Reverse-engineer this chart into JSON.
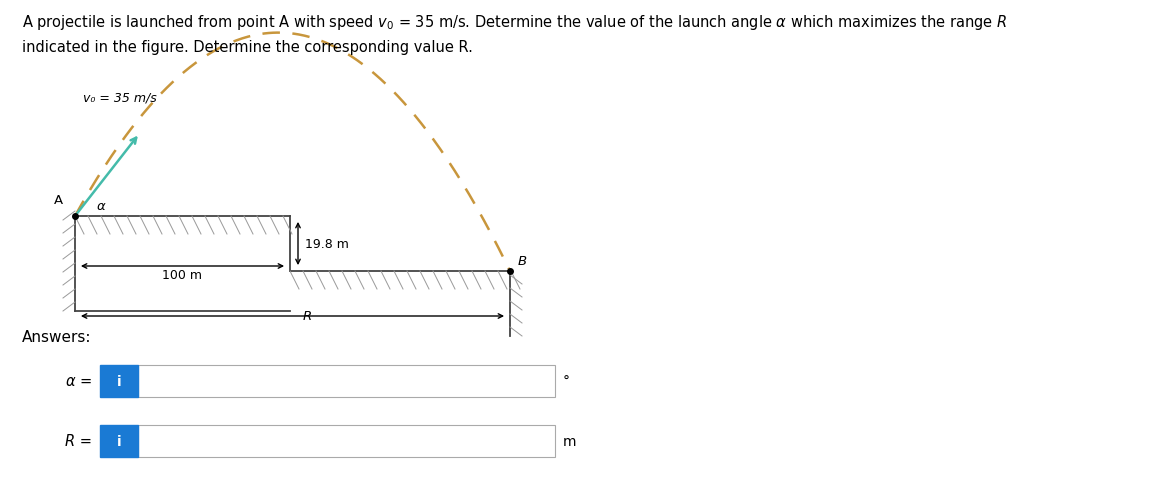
{
  "vo_label": "v₀ = 35 m/s",
  "A_label": "A",
  "alpha_label": "α",
  "B_label": "B",
  "dim_100": "100 m",
  "dim_198": "19.8 m",
  "R_label": "R",
  "answers_label": "Answers:",
  "alpha_eq": "α =",
  "R_eq": "R =",
  "degree_sym": "°",
  "m_unit": "m",
  "bg_color": "#ffffff",
  "struct_color": "#444444",
  "hatch_color": "#999999",
  "traj_color": "#c8963c",
  "arrow_color": "#44bbaa",
  "input_blue": "#1a7ad4",
  "fig_width": 11.72,
  "fig_height": 5.02,
  "title_line1": "A projectile is launched from point A with speed $v_0$ = 35 m/s. Determine the value of the launch angle $\\alpha$ which maximizes the range $R$",
  "title_line2": "indicated in the figure. Determine the corresponding value R."
}
